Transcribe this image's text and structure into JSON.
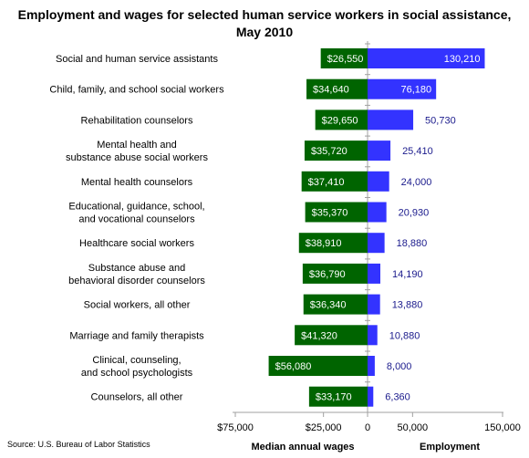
{
  "chart_data": {
    "type": "bar",
    "title_line1": "Employment and wages for selected human service workers in social assistance,",
    "title_line2": "May 2010",
    "source": "Source: U.S. Bureau of Labor Statistics",
    "left_axis_title": "Median annual wages",
    "right_axis_title": "Employment",
    "left_ticks": [
      "$75,000",
      "$25,000"
    ],
    "right_ticks": [
      "0",
      "50,000",
      "150,000"
    ],
    "wages_range": [
      0,
      75000
    ],
    "employment_range": [
      0,
      150000
    ],
    "wage_color": "#006400",
    "employment_color": "#3333ff",
    "categories": [
      [
        "Social and human service assistants"
      ],
      [
        "Child, family, and school social workers"
      ],
      [
        "Rehabilitation counselors"
      ],
      [
        "Mental health and",
        "substance abuse social workers"
      ],
      [
        "Mental health counselors"
      ],
      [
        "Educational, guidance, school,",
        "and vocational counselors"
      ],
      [
        "Healthcare social workers"
      ],
      [
        "Substance abuse and",
        "behavioral disorder counselors"
      ],
      [
        "Social workers, all other"
      ],
      [
        "Marriage and family therapists"
      ],
      [
        "Clinical, counseling,",
        "and school psychologists"
      ],
      [
        "Counselors, all other"
      ]
    ],
    "series": [
      {
        "name": "Median annual wages",
        "values": [
          26550,
          34640,
          29650,
          35720,
          37410,
          35370,
          38910,
          36790,
          36340,
          41320,
          56080,
          33170
        ],
        "labels": [
          "$26,550",
          "$34,640",
          "$29,650",
          "$35,720",
          "$37,410",
          "$35,370",
          "$38,910",
          "$36,790",
          "$36,340",
          "$41,320",
          "$56,080",
          "$33,170"
        ]
      },
      {
        "name": "Employment",
        "values": [
          130210,
          76180,
          50730,
          25410,
          24000,
          20930,
          18880,
          14190,
          13880,
          10880,
          8000,
          6360
        ],
        "labels": [
          "130,210",
          "76,180",
          "50,730",
          "25,410",
          "24,000",
          "20,930",
          "18,880",
          "14,190",
          "13,880",
          "10,880",
          "8,000",
          "6,360"
        ]
      }
    ]
  }
}
